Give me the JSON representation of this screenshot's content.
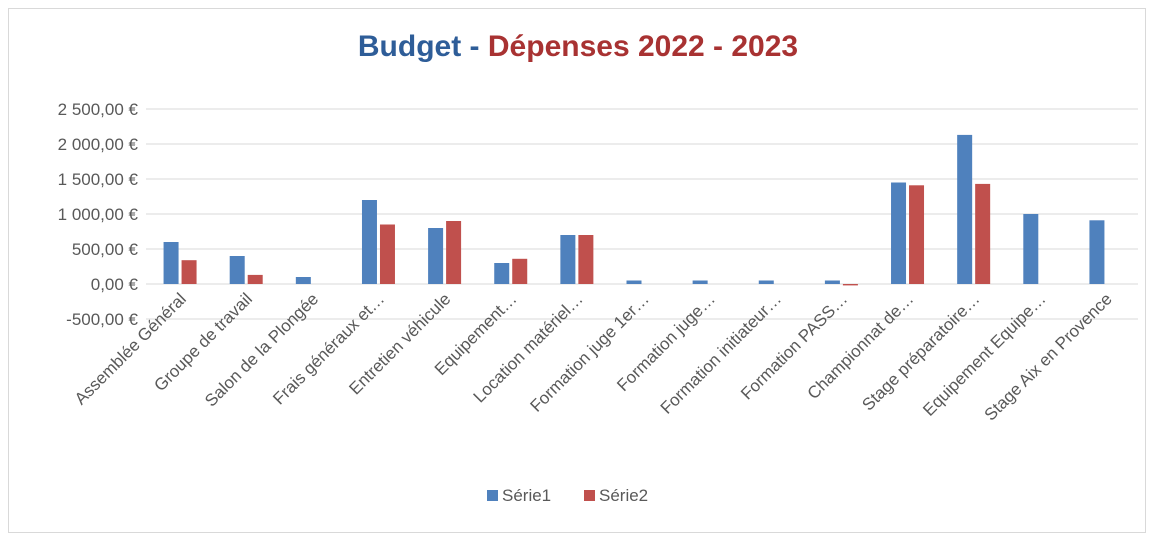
{
  "chart_data": {
    "type": "bar",
    "title_part1": "Budget",
    "title_sep": " - ",
    "title_part2": "Dépenses 2022 - 2023",
    "categories": [
      "Assemblée Général",
      "Groupe de travail",
      "Salon de la Plongée",
      "Frais généraux et…",
      "Entretien véhicule",
      "Equipement…",
      "Location matériel…",
      "Formation juge 1er…",
      "Formation juge…",
      "Formation initiateur…",
      "Formation PASS…",
      "Championnat de…",
      "Stage préparatoire…",
      "Equipement Equipe…",
      "Stage Aix en Provence"
    ],
    "series": [
      {
        "name": "Série1",
        "color": "#4f81bd",
        "values": [
          600,
          400,
          100,
          1200,
          800,
          300,
          700,
          50,
          50,
          50,
          50,
          1450,
          2130,
          1000,
          910
        ]
      },
      {
        "name": "Série2",
        "color": "#c0504d",
        "values": [
          340,
          130,
          0,
          850,
          900,
          360,
          700,
          0,
          0,
          0,
          -20,
          1410,
          1430,
          0,
          0
        ]
      }
    ],
    "y_ticks": [
      "2 500,00 €",
      "2 000,00 €",
      "1 500,00 €",
      "1 000,00 €",
      "500,00 €",
      "0,00 €",
      "-500,00 €"
    ],
    "y_tick_values": [
      2500,
      2000,
      1500,
      1000,
      500,
      0,
      -500
    ],
    "ylim": [
      -500,
      2500
    ],
    "grid": true,
    "legend": "bottom"
  }
}
